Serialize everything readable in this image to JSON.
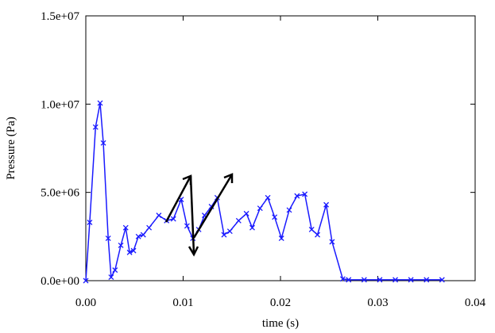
{
  "chart_data": {
    "type": "line",
    "x_label": "time (s)",
    "y_label": "Pressure (Pa)",
    "xlim": [
      0,
      0.04
    ],
    "ylim": [
      0,
      15000000
    ],
    "xticks": [
      {
        "value": 0,
        "label": "0.00"
      },
      {
        "value": 0.01,
        "label": "0.01"
      },
      {
        "value": 0.02,
        "label": "0.02"
      },
      {
        "value": 0.03,
        "label": "0.03"
      },
      {
        "value": 0.04,
        "label": "0.04"
      }
    ],
    "yticks": [
      {
        "value": 0,
        "label": "0.0e+00"
      },
      {
        "value": 5000000,
        "label": "5.0e+06"
      },
      {
        "value": 10000000,
        "label": "1.0e+07"
      },
      {
        "value": 15000000,
        "label": "1.5e+07"
      }
    ],
    "series": [
      {
        "color": "#1a1aff",
        "x": [
          0,
          0.0004,
          0.001,
          0.00147,
          0.0018,
          0.0023,
          0.0026,
          0.003,
          0.0036,
          0.0041,
          0.0045,
          0.0049,
          0.0054,
          0.0059,
          0.0065,
          0.0075,
          0.0083,
          0.009,
          0.0098,
          0.0104,
          0.011,
          0.0116,
          0.0122,
          0.0129,
          0.0135,
          0.0142,
          0.0148,
          0.0157,
          0.0165,
          0.0171,
          0.0179,
          0.0187,
          0.0194,
          0.0201,
          0.0209,
          0.0217,
          0.0225,
          0.0232,
          0.0238,
          0.0247,
          0.0253,
          0.0264,
          0.027,
          0.0286,
          0.0302,
          0.0318,
          0.0334,
          0.035,
          0.0366
        ],
        "values": [
          0,
          3300000,
          8700000,
          10060000,
          7800000,
          2400000,
          200000,
          600000,
          2000000,
          3000000,
          1600000,
          1700000,
          2500000,
          2600000,
          3000000,
          3700000,
          3400000,
          3500000,
          4600000,
          3100000,
          2400000,
          2900000,
          3700000,
          4200000,
          4700000,
          2600000,
          2800000,
          3400000,
          3800000,
          3000000,
          4100000,
          4700000,
          3600000,
          2400000,
          4000000,
          4800000,
          4900000,
          2900000,
          2600000,
          4300000,
          2200000,
          100000,
          50000,
          50000,
          50000,
          50000,
          50000,
          50000,
          50000
        ]
      }
    ]
  }
}
